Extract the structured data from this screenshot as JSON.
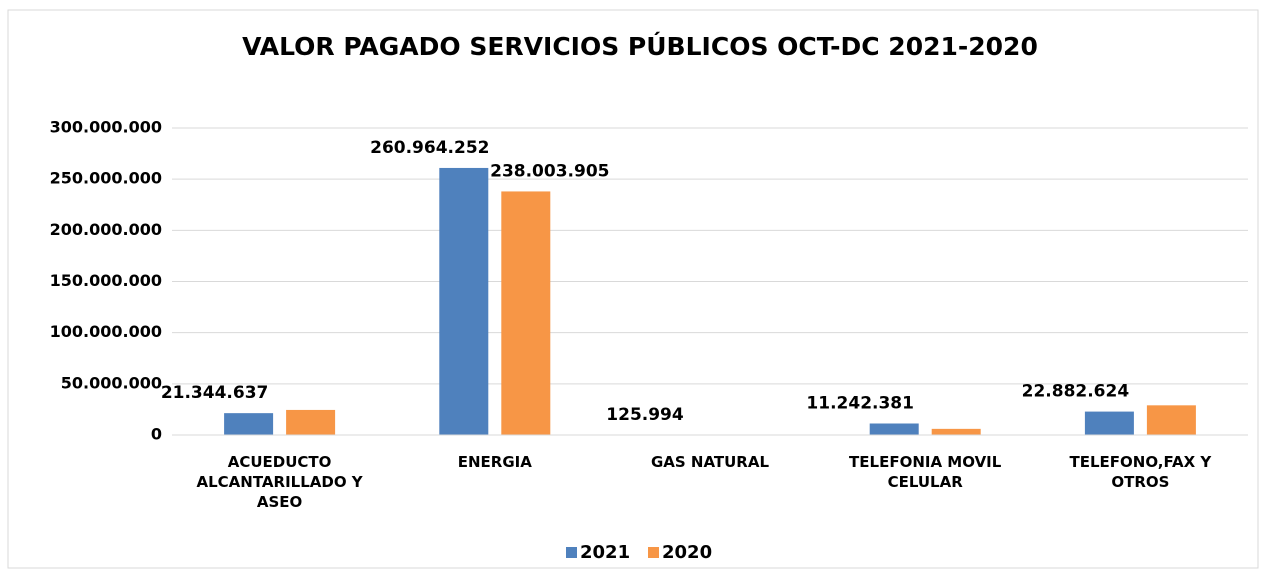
{
  "chart_data": {
    "type": "bar",
    "title": "VALOR PAGADO SERVICIOS PÚBLICOS OCT-DC 2021-2020",
    "categories": [
      "ACUEDUCTO ALCANTARILLADO Y ASEO",
      "ENERGIA",
      "GAS NATURAL",
      "TELEFONIA MOVIL CELULAR",
      "TELEFONO,FAX Y OTROS"
    ],
    "series": [
      {
        "name": "2021",
        "color": "#4f81bd",
        "values": [
          21344637,
          260964252,
          125994,
          11242381,
          22882624
        ],
        "value_labels": [
          "21.344.637",
          "260.964.252",
          "125.994",
          "11.242.381",
          "22.882.624"
        ]
      },
      {
        "name": "2020",
        "color": "#f79646",
        "values": [
          24500000,
          238003905,
          0,
          6000000,
          29000000
        ],
        "value_labels": [
          null,
          "238.003.905",
          null,
          null,
          null
        ]
      }
    ],
    "ylim": [
      0,
      300000000
    ],
    "yticks": [
      0,
      {
        "value": 50000000,
        "label": "50.000.000"
      },
      {
        "value": 100000000,
        "label": "100.000.000"
      },
      {
        "value": 150000000,
        "label": "150.000.000"
      },
      {
        "value": 200000000,
        "label": "200.000.000"
      },
      {
        "value": 250000000,
        "label": "250.000.000"
      },
      {
        "value": 300000000,
        "label": "300.000.000"
      }
    ],
    "grid": true,
    "legend": "bottom"
  }
}
